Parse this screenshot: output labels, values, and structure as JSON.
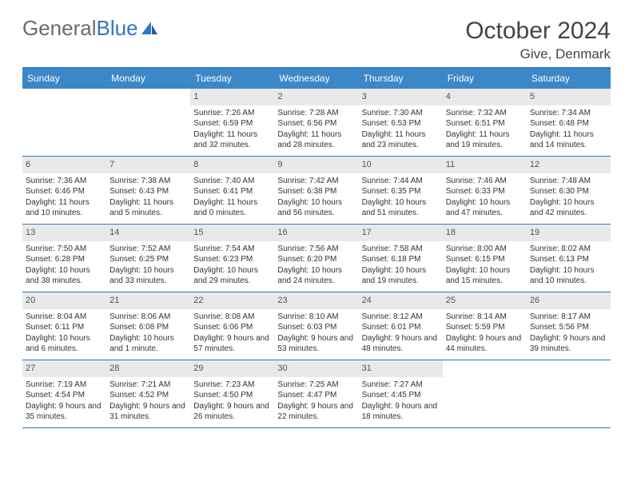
{
  "brand": {
    "part1": "General",
    "part2": "Blue"
  },
  "title": {
    "month": "October 2024",
    "location": "Give, Denmark"
  },
  "colors": {
    "accent": "#3b87c8",
    "rule": "#2f78c2",
    "dayHeader": "#e9e9e9",
    "bg": "#ffffff"
  },
  "layout": {
    "cols": 7,
    "rows": 5,
    "cell_min_height": 78,
    "font_size_body": 10,
    "font_size_daynum": 11
  },
  "dow": [
    "Sunday",
    "Monday",
    "Tuesday",
    "Wednesday",
    "Thursday",
    "Friday",
    "Saturday"
  ],
  "weeks": [
    [
      {
        "n": "",
        "t": ""
      },
      {
        "n": "",
        "t": ""
      },
      {
        "n": "1",
        "t": "Sunrise: 7:26 AM\nSunset: 6:59 PM\nDaylight: 11 hours and 32 minutes."
      },
      {
        "n": "2",
        "t": "Sunrise: 7:28 AM\nSunset: 6:56 PM\nDaylight: 11 hours and 28 minutes."
      },
      {
        "n": "3",
        "t": "Sunrise: 7:30 AM\nSunset: 6:53 PM\nDaylight: 11 hours and 23 minutes."
      },
      {
        "n": "4",
        "t": "Sunrise: 7:32 AM\nSunset: 6:51 PM\nDaylight: 11 hours and 19 minutes."
      },
      {
        "n": "5",
        "t": "Sunrise: 7:34 AM\nSunset: 6:48 PM\nDaylight: 11 hours and 14 minutes."
      }
    ],
    [
      {
        "n": "6",
        "t": "Sunrise: 7:36 AM\nSunset: 6:46 PM\nDaylight: 11 hours and 10 minutes."
      },
      {
        "n": "7",
        "t": "Sunrise: 7:38 AM\nSunset: 6:43 PM\nDaylight: 11 hours and 5 minutes."
      },
      {
        "n": "8",
        "t": "Sunrise: 7:40 AM\nSunset: 6:41 PM\nDaylight: 11 hours and 0 minutes."
      },
      {
        "n": "9",
        "t": "Sunrise: 7:42 AM\nSunset: 6:38 PM\nDaylight: 10 hours and 56 minutes."
      },
      {
        "n": "10",
        "t": "Sunrise: 7:44 AM\nSunset: 6:35 PM\nDaylight: 10 hours and 51 minutes."
      },
      {
        "n": "11",
        "t": "Sunrise: 7:46 AM\nSunset: 6:33 PM\nDaylight: 10 hours and 47 minutes."
      },
      {
        "n": "12",
        "t": "Sunrise: 7:48 AM\nSunset: 6:30 PM\nDaylight: 10 hours and 42 minutes."
      }
    ],
    [
      {
        "n": "13",
        "t": "Sunrise: 7:50 AM\nSunset: 6:28 PM\nDaylight: 10 hours and 38 minutes."
      },
      {
        "n": "14",
        "t": "Sunrise: 7:52 AM\nSunset: 6:25 PM\nDaylight: 10 hours and 33 minutes."
      },
      {
        "n": "15",
        "t": "Sunrise: 7:54 AM\nSunset: 6:23 PM\nDaylight: 10 hours and 29 minutes."
      },
      {
        "n": "16",
        "t": "Sunrise: 7:56 AM\nSunset: 6:20 PM\nDaylight: 10 hours and 24 minutes."
      },
      {
        "n": "17",
        "t": "Sunrise: 7:58 AM\nSunset: 6:18 PM\nDaylight: 10 hours and 19 minutes."
      },
      {
        "n": "18",
        "t": "Sunrise: 8:00 AM\nSunset: 6:15 PM\nDaylight: 10 hours and 15 minutes."
      },
      {
        "n": "19",
        "t": "Sunrise: 8:02 AM\nSunset: 6:13 PM\nDaylight: 10 hours and 10 minutes."
      }
    ],
    [
      {
        "n": "20",
        "t": "Sunrise: 8:04 AM\nSunset: 6:11 PM\nDaylight: 10 hours and 6 minutes."
      },
      {
        "n": "21",
        "t": "Sunrise: 8:06 AM\nSunset: 6:08 PM\nDaylight: 10 hours and 1 minute."
      },
      {
        "n": "22",
        "t": "Sunrise: 8:08 AM\nSunset: 6:06 PM\nDaylight: 9 hours and 57 minutes."
      },
      {
        "n": "23",
        "t": "Sunrise: 8:10 AM\nSunset: 6:03 PM\nDaylight: 9 hours and 53 minutes."
      },
      {
        "n": "24",
        "t": "Sunrise: 8:12 AM\nSunset: 6:01 PM\nDaylight: 9 hours and 48 minutes."
      },
      {
        "n": "25",
        "t": "Sunrise: 8:14 AM\nSunset: 5:59 PM\nDaylight: 9 hours and 44 minutes."
      },
      {
        "n": "26",
        "t": "Sunrise: 8:17 AM\nSunset: 5:56 PM\nDaylight: 9 hours and 39 minutes."
      }
    ],
    [
      {
        "n": "27",
        "t": "Sunrise: 7:19 AM\nSunset: 4:54 PM\nDaylight: 9 hours and 35 minutes."
      },
      {
        "n": "28",
        "t": "Sunrise: 7:21 AM\nSunset: 4:52 PM\nDaylight: 9 hours and 31 minutes."
      },
      {
        "n": "29",
        "t": "Sunrise: 7:23 AM\nSunset: 4:50 PM\nDaylight: 9 hours and 26 minutes."
      },
      {
        "n": "30",
        "t": "Sunrise: 7:25 AM\nSunset: 4:47 PM\nDaylight: 9 hours and 22 minutes."
      },
      {
        "n": "31",
        "t": "Sunrise: 7:27 AM\nSunset: 4:45 PM\nDaylight: 9 hours and 18 minutes."
      },
      {
        "n": "",
        "t": ""
      },
      {
        "n": "",
        "t": ""
      }
    ]
  ]
}
